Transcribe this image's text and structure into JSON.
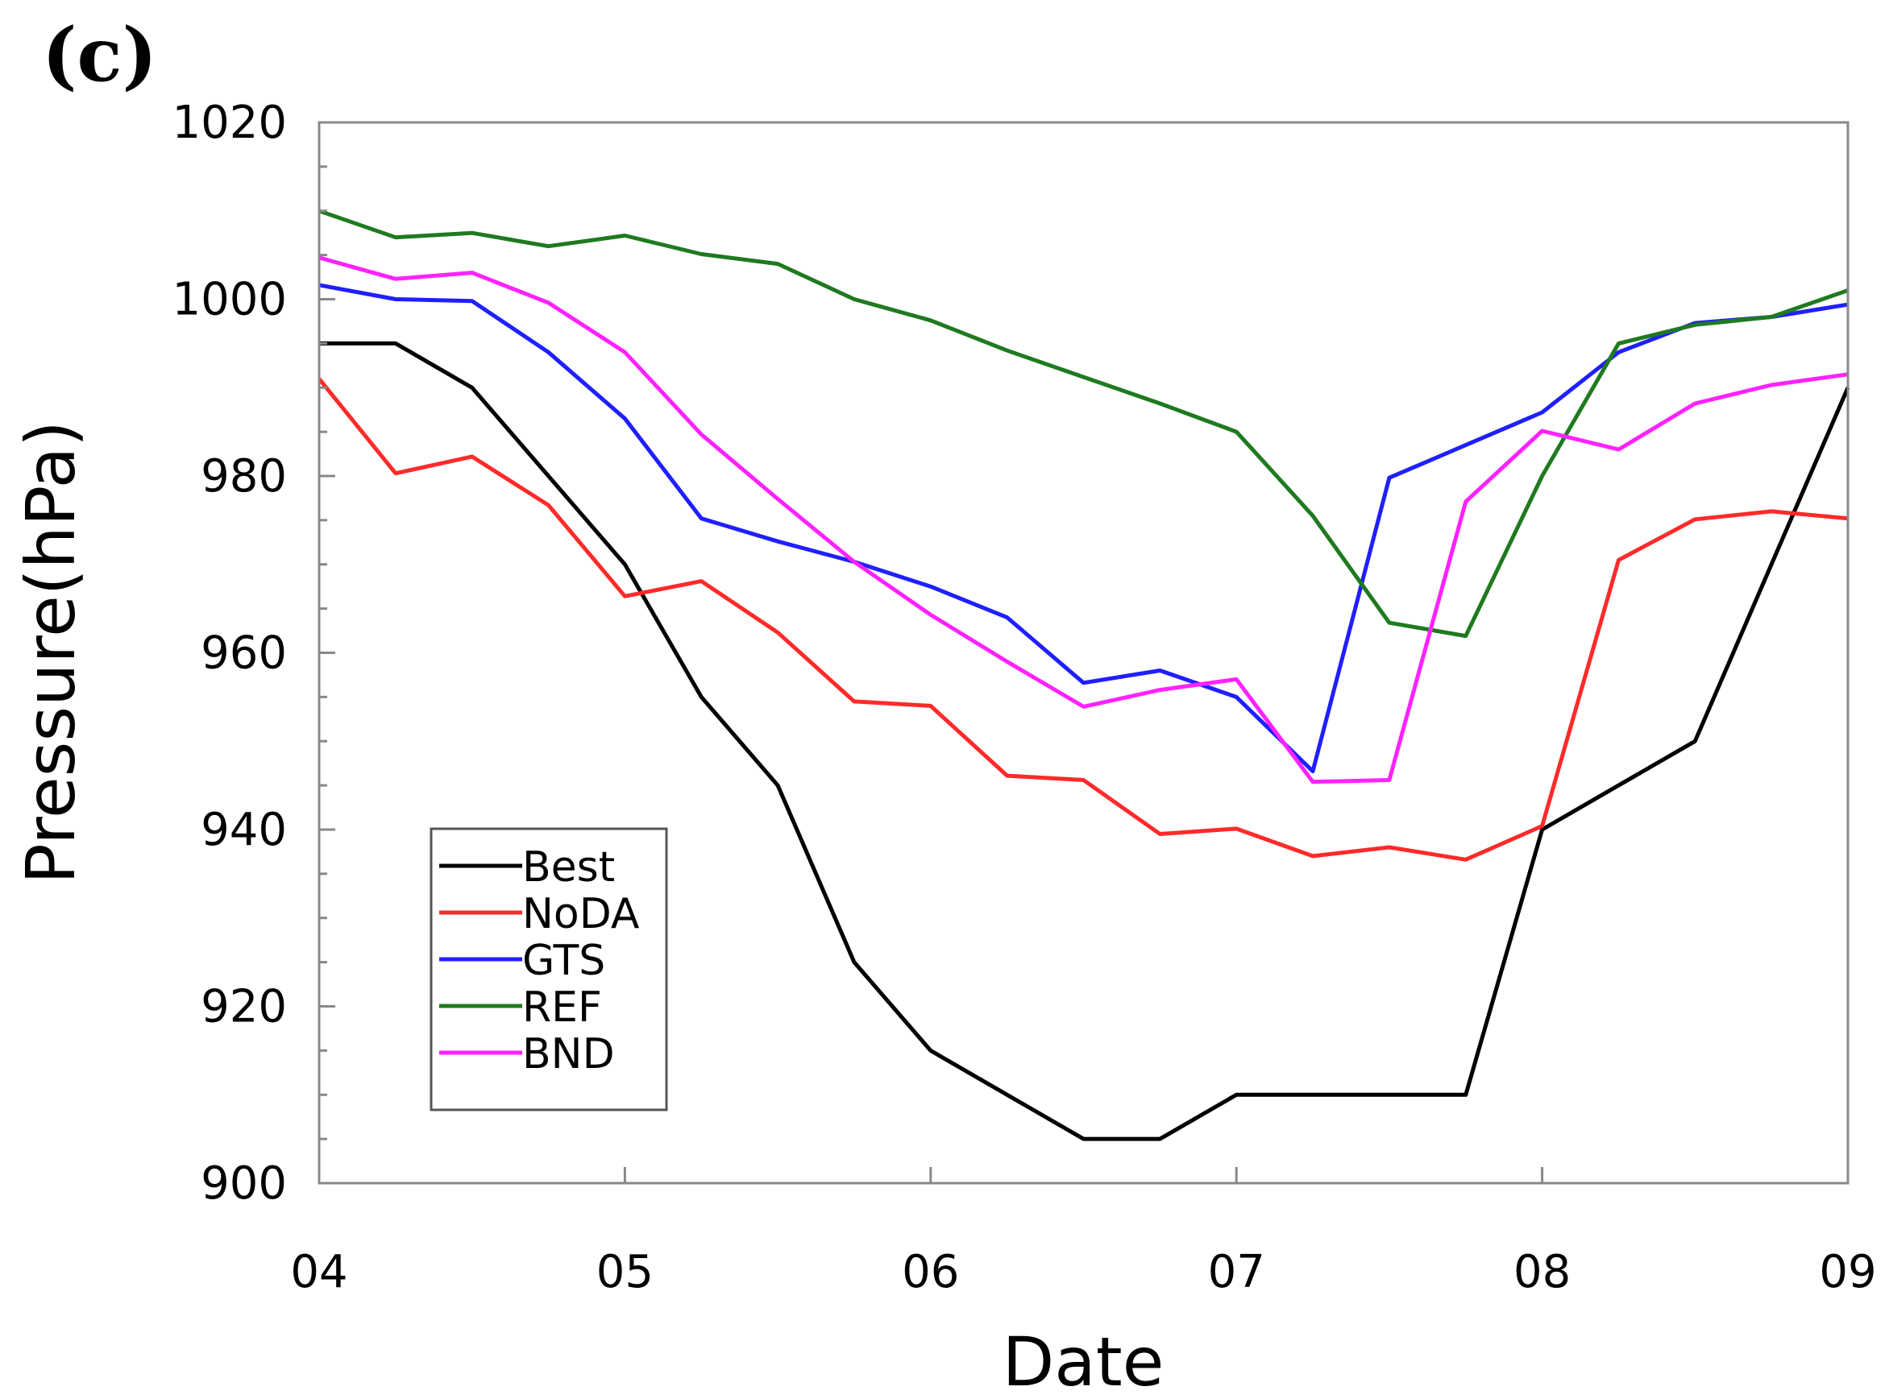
{
  "panel_label": "(c)",
  "chart_data": {
    "type": "line",
    "title": "",
    "xlabel": "Date",
    "ylabel": "Pressure(hPa)",
    "xlim": [
      4,
      9
    ],
    "ylim": [
      900,
      1020
    ],
    "x_ticks": [
      4,
      5,
      6,
      7,
      8,
      9
    ],
    "x_tick_labels": [
      "04",
      "05",
      "06",
      "07",
      "08",
      "09"
    ],
    "y_ticks": [
      900,
      920,
      940,
      960,
      980,
      1000,
      1020
    ],
    "y_tick_labels": [
      "900",
      "920",
      "940",
      "960",
      "980",
      "1000",
      "1020"
    ],
    "y_minor_step": 5,
    "grid": false,
    "legend_position": "bottom-left",
    "x": [
      4.0,
      4.25,
      4.5,
      4.75,
      5.0,
      5.25,
      5.5,
      5.75,
      6.0,
      6.25,
      6.5,
      6.75,
      7.0,
      7.25,
      7.5,
      7.75,
      8.0,
      8.25,
      8.5,
      8.75,
      9.0
    ],
    "series": [
      {
        "name": "Best",
        "color": "#000000",
        "values": [
          995,
          995,
          990,
          980,
          970,
          955,
          945,
          925,
          915,
          910,
          905,
          905,
          910,
          910,
          910,
          910,
          940,
          945,
          950,
          970,
          990
        ]
      },
      {
        "name": "NoDA",
        "color": "#ff2a2a",
        "values": [
          991,
          980.3,
          982.2,
          976.7,
          966.4,
          968.1,
          962.3,
          954.5,
          954,
          946.1,
          945.6,
          939.5,
          940.1,
          937,
          938,
          936.6,
          940.4,
          970.5,
          975.1,
          976,
          975.2
        ]
      },
      {
        "name": "GTS",
        "color": "#1f1fff",
        "values": [
          1001.6,
          1000,
          999.8,
          994,
          986.5,
          975.2,
          972.6,
          970.3,
          967.5,
          964,
          956.6,
          958,
          955,
          946.6,
          979.8,
          983.5,
          987.2,
          994,
          997.3,
          998,
          999.4
        ]
      },
      {
        "name": "REF",
        "color": "#1f7a1f",
        "values": [
          1010,
          1007,
          1007.5,
          1006,
          1007.2,
          1005.1,
          1004,
          1000,
          997.6,
          994.2,
          991.2,
          988.2,
          985,
          975.5,
          963.4,
          961.9,
          980,
          995,
          997.1,
          998,
          1001
        ]
      },
      {
        "name": "BND",
        "color": "#ff22ff",
        "values": [
          1004.7,
          1002.3,
          1003,
          999.6,
          994,
          984.7,
          977.4,
          970.3,
          964.3,
          959,
          953.9,
          955.8,
          957,
          945.4,
          945.6,
          977.1,
          985.1,
          983,
          988.2,
          990.3,
          991.5
        ]
      }
    ]
  }
}
